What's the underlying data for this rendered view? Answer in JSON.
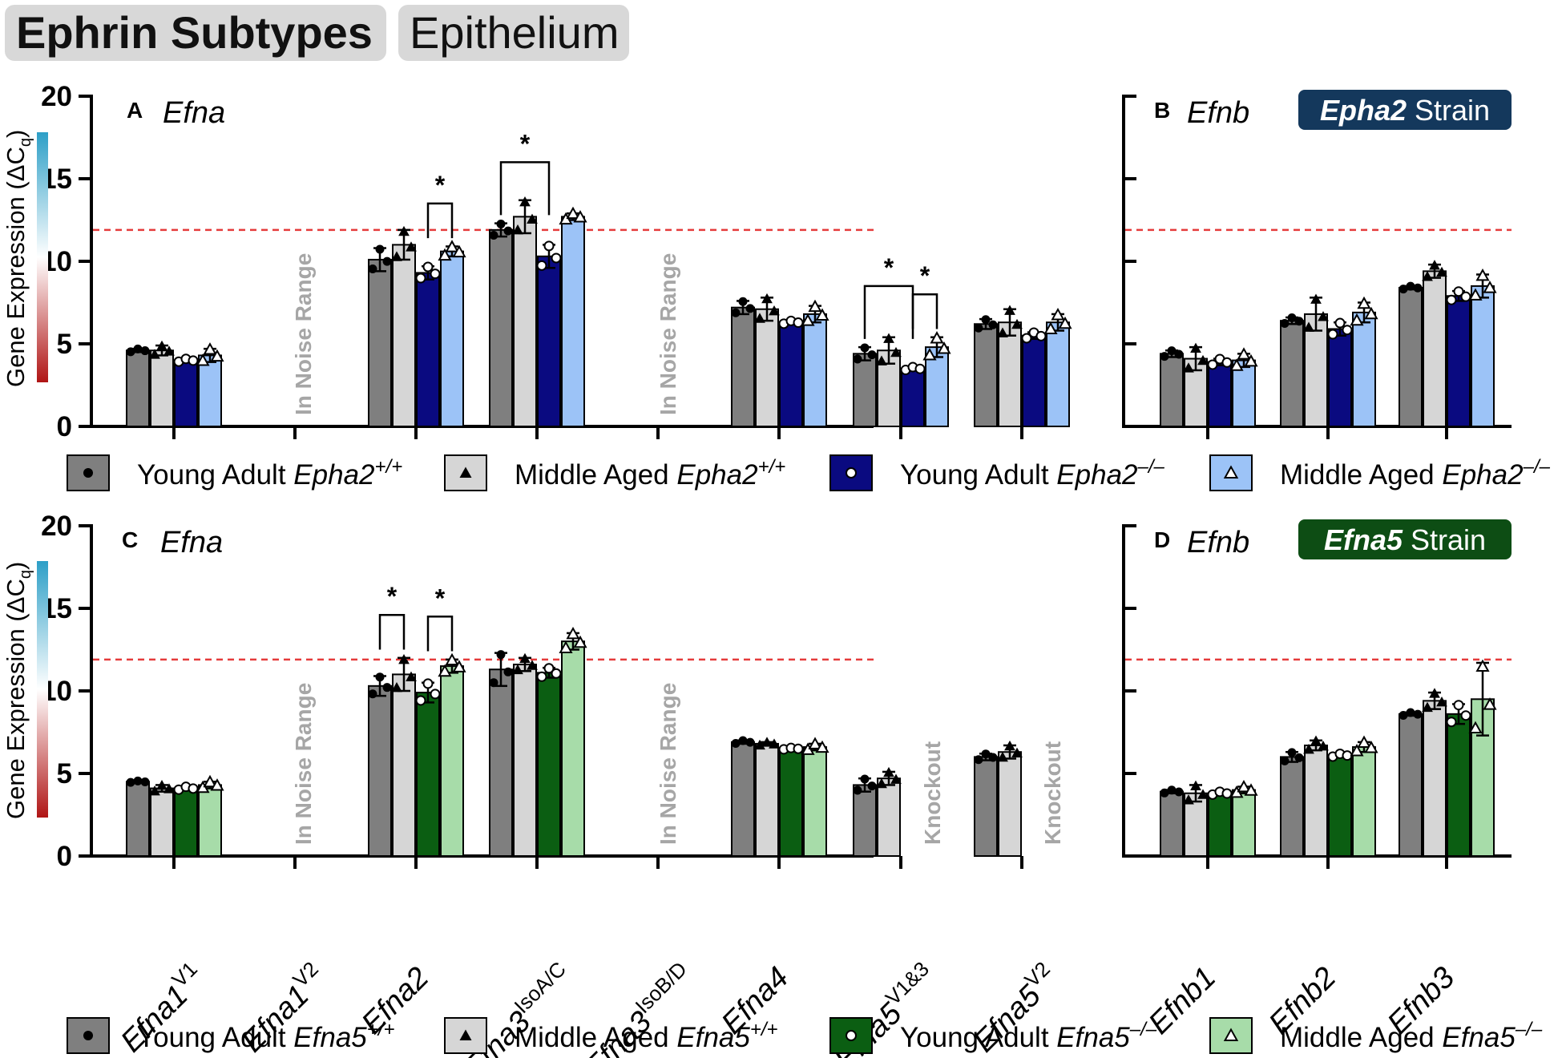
{
  "header": {
    "title": "Ephrin Subtypes",
    "tissue": "Epithelium"
  },
  "colors": {
    "young_wt": "#7f7f7f",
    "middle_wt": "#d6d6d6",
    "epha2_young_ko": "#0a0a80",
    "epha2_middle_ko": "#9cc3f7",
    "efna5_young_ko": "#0b5e12",
    "efna5_middle_ko": "#a7dca9",
    "epha2_strain_bg": "#14385c",
    "efna5_strain_bg": "#0d4d14",
    "threshold": "#e53b3b"
  },
  "y_axis_label": "Gene Expression (ΔC",
  "y_axis_label_sub": "q",
  "y_axis_label_end": ")",
  "noise_label": "In Noise Range",
  "knockout_label": "Knockout",
  "legends": {
    "epha2": [
      {
        "pre": "Young Adult ",
        "gene": "Epha2",
        "sup": "+/+",
        "marker": "dot"
      },
      {
        "pre": "Middle Aged ",
        "gene": "Epha2",
        "sup": "+/+",
        "marker": "triangle"
      },
      {
        "pre": "Young Adult ",
        "gene": "Epha2",
        "sup": "–/–",
        "marker": "circle"
      },
      {
        "pre": "Middle Aged ",
        "gene": "Epha2",
        "sup": "–/–",
        "marker": "open-triangle"
      }
    ],
    "efna5": [
      {
        "pre": "Young Adult ",
        "gene": "Efna5",
        "sup": "+/+",
        "marker": "dot"
      },
      {
        "pre": "Middle Aged ",
        "gene": "Efna5",
        "sup": "+/+",
        "marker": "triangle"
      },
      {
        "pre": "Young Adult ",
        "gene": "Efna5",
        "sup": "–/–",
        "marker": "circle"
      },
      {
        "pre": "Middle Aged ",
        "gene": "Efna5",
        "sup": "–/–",
        "marker": "open-triangle"
      }
    ]
  },
  "x_categories_left": [
    {
      "base": "Efna1",
      "sup": "V1"
    },
    {
      "base": "Efna1",
      "sup": "V2"
    },
    {
      "base": "Efna2",
      "sup": ""
    },
    {
      "base": "Efna3",
      "sup": "IsoA/C"
    },
    {
      "base": "Efna3",
      "sup": "IsoB/D"
    },
    {
      "base": "Efna4",
      "sup": ""
    },
    {
      "base": "Efna5",
      "sup": "V1&3"
    },
    {
      "base": "Efna5",
      "sup": "V2"
    }
  ],
  "x_categories_right": [
    {
      "base": "Efnb1",
      "sup": ""
    },
    {
      "base": "Efnb2",
      "sup": ""
    },
    {
      "base": "Efnb3",
      "sup": ""
    }
  ],
  "chart_data": [
    {
      "panel": "A",
      "title": "Efna",
      "type": "bar",
      "strain": "Epha2",
      "ylim": [
        0,
        20
      ],
      "yticks": [
        0,
        5,
        10,
        15,
        20
      ],
      "threshold": 11.9,
      "categories": [
        "Efna1 V1",
        "Efna1 V2",
        "Efna2",
        "Efna3 IsoA/C",
        "Efna3 IsoB/D",
        "Efna4",
        "Efna5 V1&3",
        "Efna5 V2"
      ],
      "notes": [
        null,
        "In Noise Range",
        null,
        null,
        "In Noise Range",
        null,
        null,
        null
      ],
      "series": [
        {
          "name": "Young Adult Epha2+/+",
          "values": [
            4.6,
            null,
            10.1,
            11.9,
            null,
            7.2,
            4.4,
            6.2
          ],
          "err": [
            0.1,
            null,
            0.7,
            0.4,
            null,
            0.4,
            0.4,
            0.3
          ]
        },
        {
          "name": "Middle Aged Epha2+/+",
          "values": [
            4.6,
            null,
            11.0,
            12.7,
            null,
            7.1,
            4.6,
            6.3
          ],
          "err": [
            0.3,
            null,
            0.9,
            1.0,
            null,
            0.7,
            0.8,
            0.8
          ]
        },
        {
          "name": "Young Adult Epha2-/-",
          "values": [
            4.0,
            null,
            9.3,
            10.3,
            null,
            6.3,
            3.5,
            5.5
          ],
          "err": [
            0.1,
            null,
            0.4,
            0.7,
            null,
            0.1,
            0.1,
            0.2
          ]
        },
        {
          "name": "Middle Aged Epha2-/-",
          "values": [
            4.3,
            null,
            10.6,
            12.7,
            null,
            6.8,
            4.8,
            6.3
          ],
          "err": [
            0.4,
            null,
            0.3,
            0.2,
            null,
            0.5,
            0.6,
            0.5
          ]
        }
      ],
      "significance": [
        {
          "category": "Efna2",
          "between": [
            "Young Adult Epha2-/-",
            "Middle Aged Epha2-/-"
          ],
          "label": "*"
        },
        {
          "category": "Efna3 IsoA/C",
          "between": [
            "Young Adult Epha2+/+",
            "Young Adult Epha2-/-"
          ],
          "label": "*"
        },
        {
          "category": "Efna5 V1&3",
          "between": [
            "Young Adult Epha2+/+",
            "Young Adult Epha2-/-"
          ],
          "label": "*"
        },
        {
          "category": "Efna5 V1&3",
          "between": [
            "Young Adult Epha2-/-",
            "Middle Aged Epha2-/-"
          ],
          "label": "*"
        }
      ]
    },
    {
      "panel": "B",
      "title": "Efnb",
      "type": "bar",
      "strain": "Epha2",
      "strain_label_bold": "Epha2",
      "strain_label": " Strain",
      "ylim": [
        0,
        20
      ],
      "threshold": 11.9,
      "categories": [
        "Efnb1",
        "Efnb2",
        "Efnb3"
      ],
      "series": [
        {
          "name": "Young Adult Epha2+/+",
          "values": [
            4.4,
            6.4,
            8.4
          ],
          "err": [
            0.2,
            0.2,
            0.1
          ]
        },
        {
          "name": "Middle Aged Epha2+/+",
          "values": [
            4.1,
            6.8,
            9.4
          ],
          "err": [
            0.7,
            1.0,
            0.4
          ]
        },
        {
          "name": "Young Adult Epha2-/-",
          "values": [
            3.9,
            5.9,
            7.9
          ],
          "err": [
            0.2,
            0.4,
            0.3
          ]
        },
        {
          "name": "Middle Aged Epha2-/-",
          "values": [
            4.0,
            6.9,
            8.5
          ],
          "err": [
            0.4,
            0.6,
            0.7
          ]
        }
      ]
    },
    {
      "panel": "C",
      "title": "Efna",
      "type": "bar",
      "strain": "Efna5",
      "ylim": [
        0,
        20
      ],
      "yticks": [
        0,
        5,
        10,
        15,
        20
      ],
      "threshold": 11.9,
      "categories": [
        "Efna1 V1",
        "Efna1 V2",
        "Efna2",
        "Efna3 IsoA/C",
        "Efna3 IsoB/D",
        "Efna4",
        "Efna5 V1&3",
        "Efna5 V2"
      ],
      "notes": [
        null,
        "In Noise Range",
        null,
        null,
        "In Noise Range",
        null,
        "Knockout",
        "Knockout"
      ],
      "series": [
        {
          "name": "Young Adult Efna5+/+",
          "values": [
            4.5,
            null,
            10.3,
            11.3,
            null,
            6.9,
            4.3,
            6.0
          ],
          "err": [
            0.05,
            null,
            0.6,
            1.0,
            null,
            0.1,
            0.4,
            0.2
          ]
        },
        {
          "name": "Middle Aged Efna5+/+",
          "values": [
            4.1,
            null,
            11.0,
            11.6,
            null,
            6.8,
            4.7,
            6.3
          ],
          "err": [
            0.2,
            null,
            1.0,
            0.4,
            null,
            0.1,
            0.4,
            0.4
          ]
        },
        {
          "name": "Young Adult Efna5-/-",
          "values": [
            4.1,
            null,
            9.9,
            11.1,
            null,
            6.5,
            null,
            null
          ],
          "err": [
            0.1,
            null,
            0.6,
            0.3,
            null,
            0.05,
            null,
            null
          ]
        },
        {
          "name": "Middle Aged Efna5-/-",
          "values": [
            4.3,
            null,
            11.5,
            13.0,
            null,
            6.6,
            null,
            null
          ],
          "err": [
            0.2,
            null,
            0.4,
            0.5,
            null,
            0.2,
            null,
            null
          ]
        }
      ],
      "significance": [
        {
          "category": "Efna2",
          "between": [
            "Young Adult Efna5+/+",
            "Middle Aged Efna5+/+"
          ],
          "label": "*"
        },
        {
          "category": "Efna2",
          "between": [
            "Young Adult Efna5-/-",
            "Middle Aged Efna5-/-"
          ],
          "label": "*"
        }
      ]
    },
    {
      "panel": "D",
      "title": "Efnb",
      "type": "bar",
      "strain": "Efna5",
      "strain_label_bold": "Efna5",
      "strain_label": " Strain",
      "ylim": [
        0,
        20
      ],
      "threshold": 11.9,
      "categories": [
        "Efnb1",
        "Efnb2",
        "Efnb3"
      ],
      "series": [
        {
          "name": "Young Adult Efna5+/+",
          "values": [
            3.9,
            6.0,
            8.6
          ],
          "err": [
            0.1,
            0.3,
            0.1
          ]
        },
        {
          "name": "Middle Aged Efna5+/+",
          "values": [
            3.8,
            6.7,
            9.4
          ],
          "err": [
            0.5,
            0.3,
            0.5
          ]
        },
        {
          "name": "Young Adult Efna5-/-",
          "values": [
            3.8,
            6.1,
            8.6
          ],
          "err": [
            0.1,
            0.1,
            0.6
          ]
        },
        {
          "name": "Middle Aged Efna5-/-",
          "values": [
            4.0,
            6.6,
            9.5
          ],
          "err": [
            0.2,
            0.3,
            2.2
          ]
        }
      ]
    }
  ]
}
